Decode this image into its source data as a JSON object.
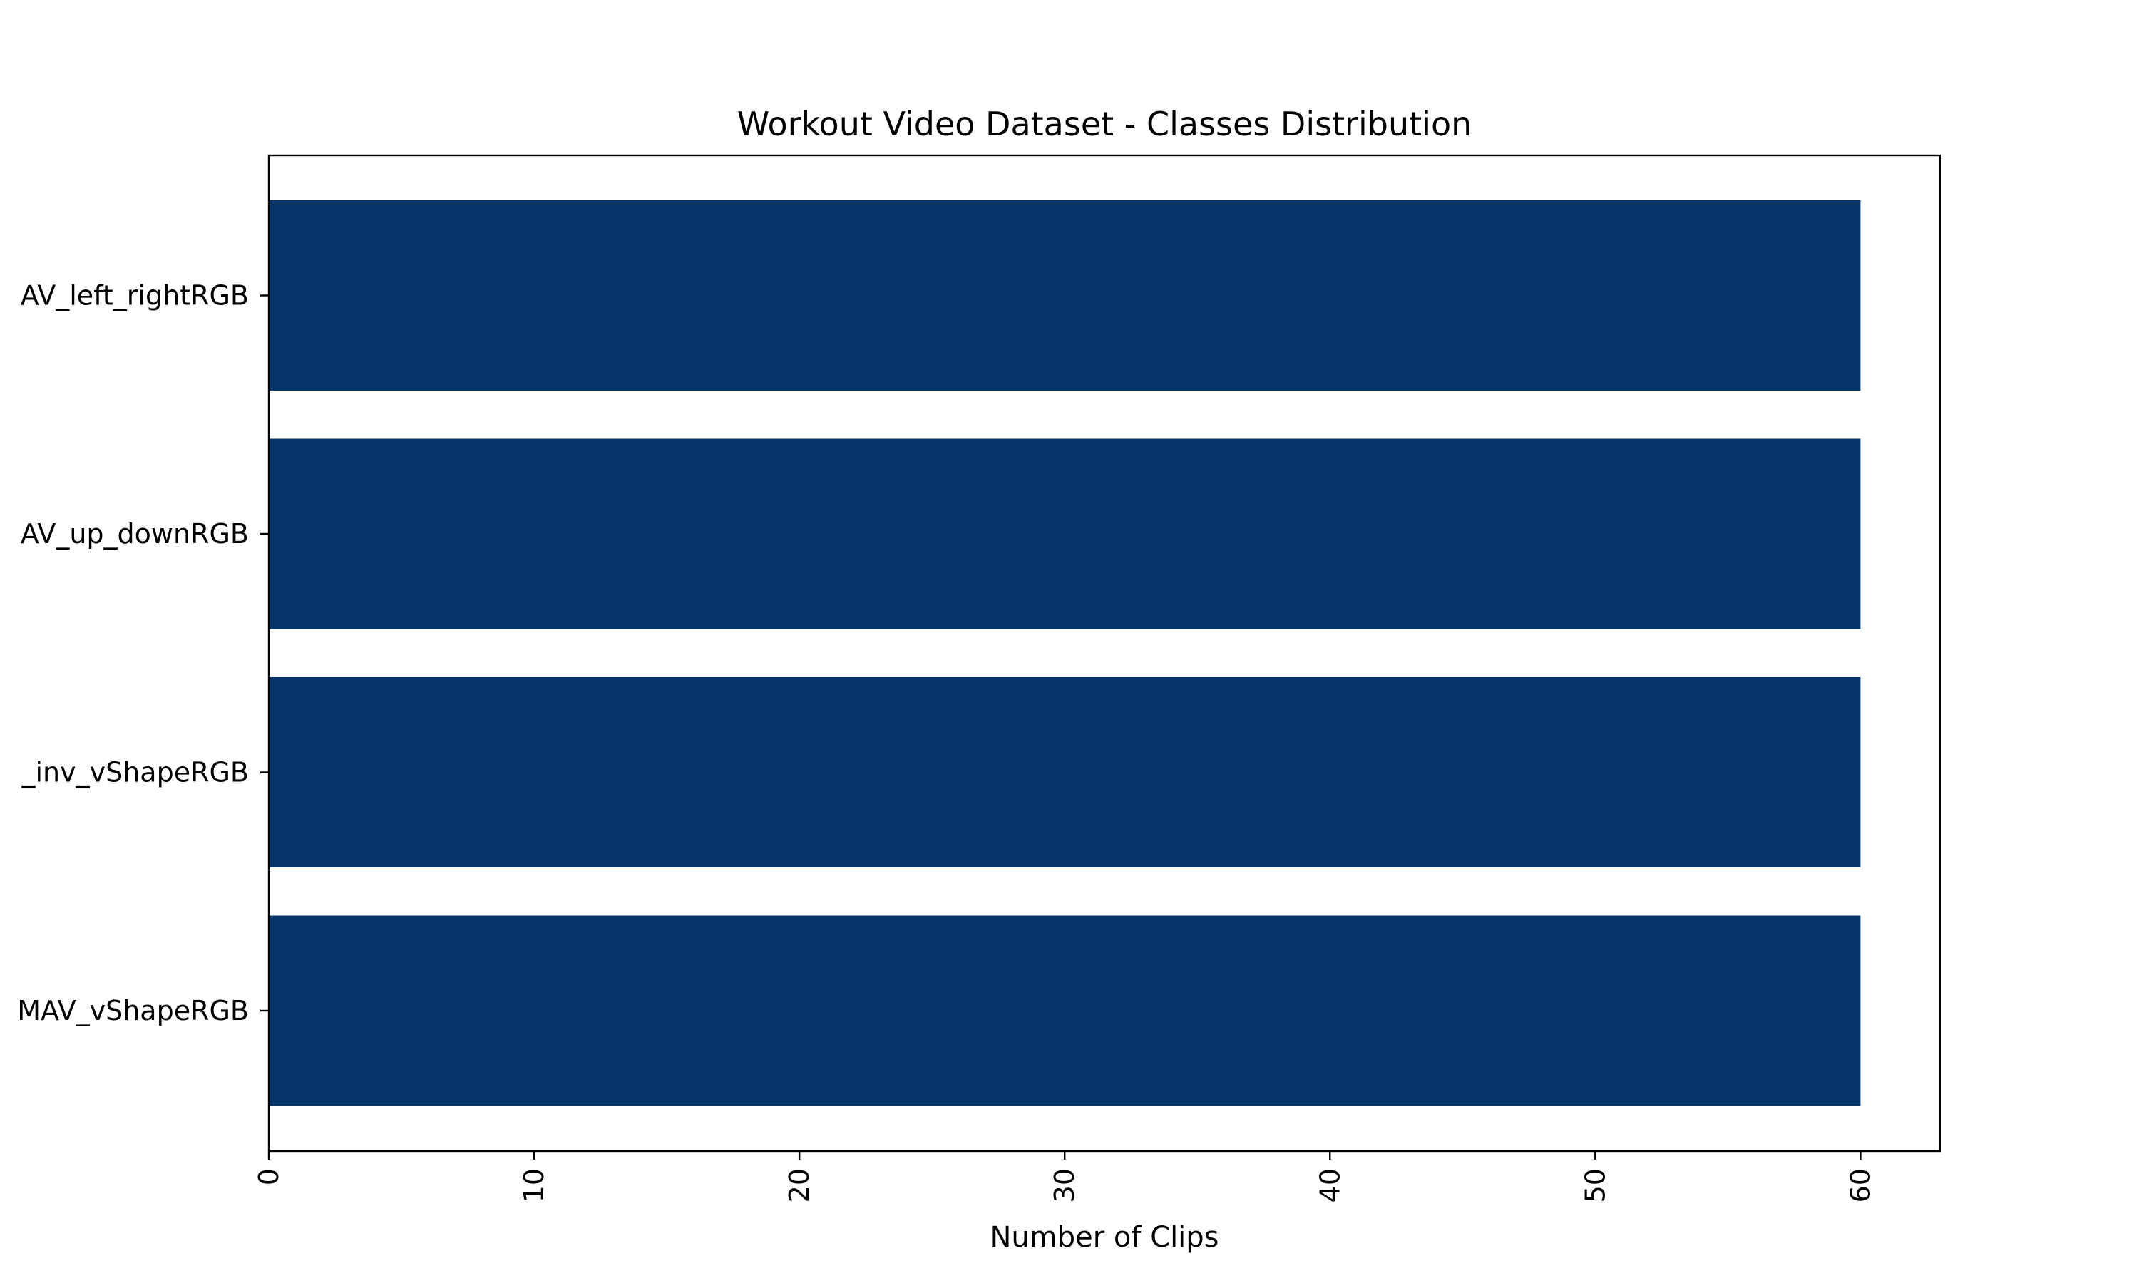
{
  "chart_data": {
    "type": "bar",
    "orientation": "horizontal",
    "title": "Workout Video Dataset - Classes Distribution",
    "xlabel": "Number of Clips",
    "ylabel": "",
    "categories": [
      "MAV_vShapeRGB",
      "_inv_vShapeRGB",
      "AV_up_downRGB",
      "AV_left_rightRGB"
    ],
    "values": [
      60,
      60,
      60,
      60
    ],
    "xlim": [
      0,
      63
    ],
    "xticks": [
      0,
      10,
      20,
      30,
      40,
      50,
      60
    ],
    "xtick_rotation": "vertical",
    "grid": false,
    "legend": "none",
    "bar_color": "#05346b"
  }
}
